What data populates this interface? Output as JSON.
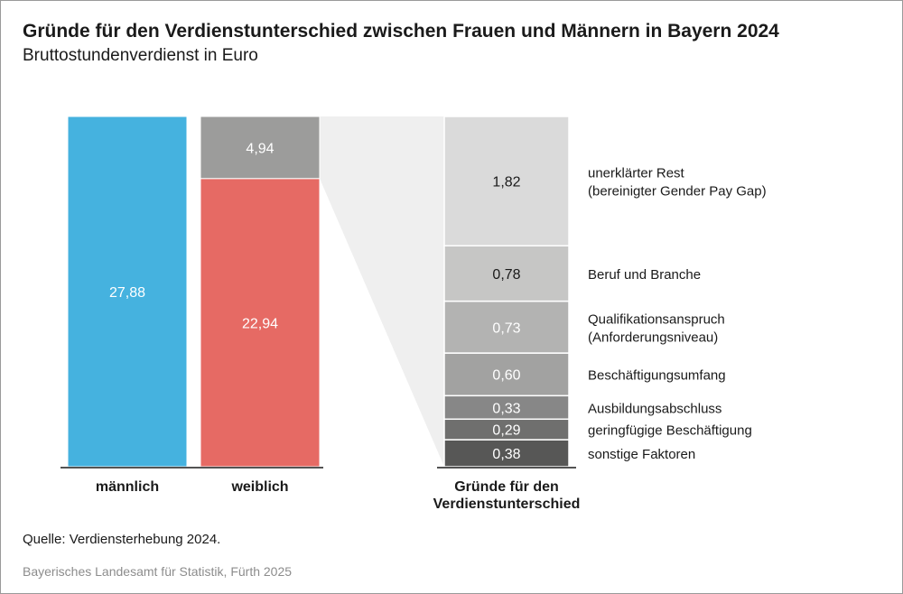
{
  "header": {
    "title": "Gründe für den Verdienstunterschied zwischen Frauen und Männern in Bayern 2024",
    "subtitle": "Bruttostundenverdienst in Euro"
  },
  "footer": {
    "source": "Quelle: Verdiensterhebung 2024.",
    "publisher": "Bayerisches Landesamt für Statistik, Fürth 2025"
  },
  "chart_data": {
    "type": "bar",
    "bars": [
      {
        "category": "männlich",
        "segments": [
          {
            "value": 27.88,
            "label": "27,88",
            "color": "#45b2df"
          }
        ]
      },
      {
        "category": "weiblich",
        "segments": [
          {
            "value": 22.94,
            "label": "22,94",
            "color": "#e66a64"
          },
          {
            "value": 4.94,
            "label": "4,94",
            "color": "#9c9c9b"
          }
        ]
      }
    ],
    "breakdown": {
      "category_lines": [
        "Gründe für den",
        "Verdienstunterschied"
      ],
      "segments": [
        {
          "value": 0.38,
          "label": "0,38",
          "name_lines": [
            "sonstige Faktoren"
          ],
          "color": "#575756"
        },
        {
          "value": 0.29,
          "label": "0,29",
          "name_lines": [
            "geringfügige Beschäftigung"
          ],
          "color": "#6f6f6e"
        },
        {
          "value": 0.33,
          "label": "0,33",
          "name_lines": [
            "Ausbildungsabschluss"
          ],
          "color": "#878787"
        },
        {
          "value": 0.6,
          "label": "0,60",
          "name_lines": [
            "Beschäftigungsumfang"
          ],
          "color": "#a2a2a1"
        },
        {
          "value": 0.73,
          "label": "0,73",
          "name_lines": [
            "Qualifikationsanspruch",
            "(Anforderungsniveau)"
          ],
          "color": "#b3b3b2"
        },
        {
          "value": 0.78,
          "label": "0,78",
          "name_lines": [
            "Beruf und Branche"
          ],
          "color": "#c6c6c5"
        },
        {
          "value": 1.82,
          "label": "1,82",
          "name_lines": [
            "unerklärter Rest",
            "(bereinigter Gender Pay Gap)"
          ],
          "color": "#dadada"
        }
      ]
    }
  }
}
